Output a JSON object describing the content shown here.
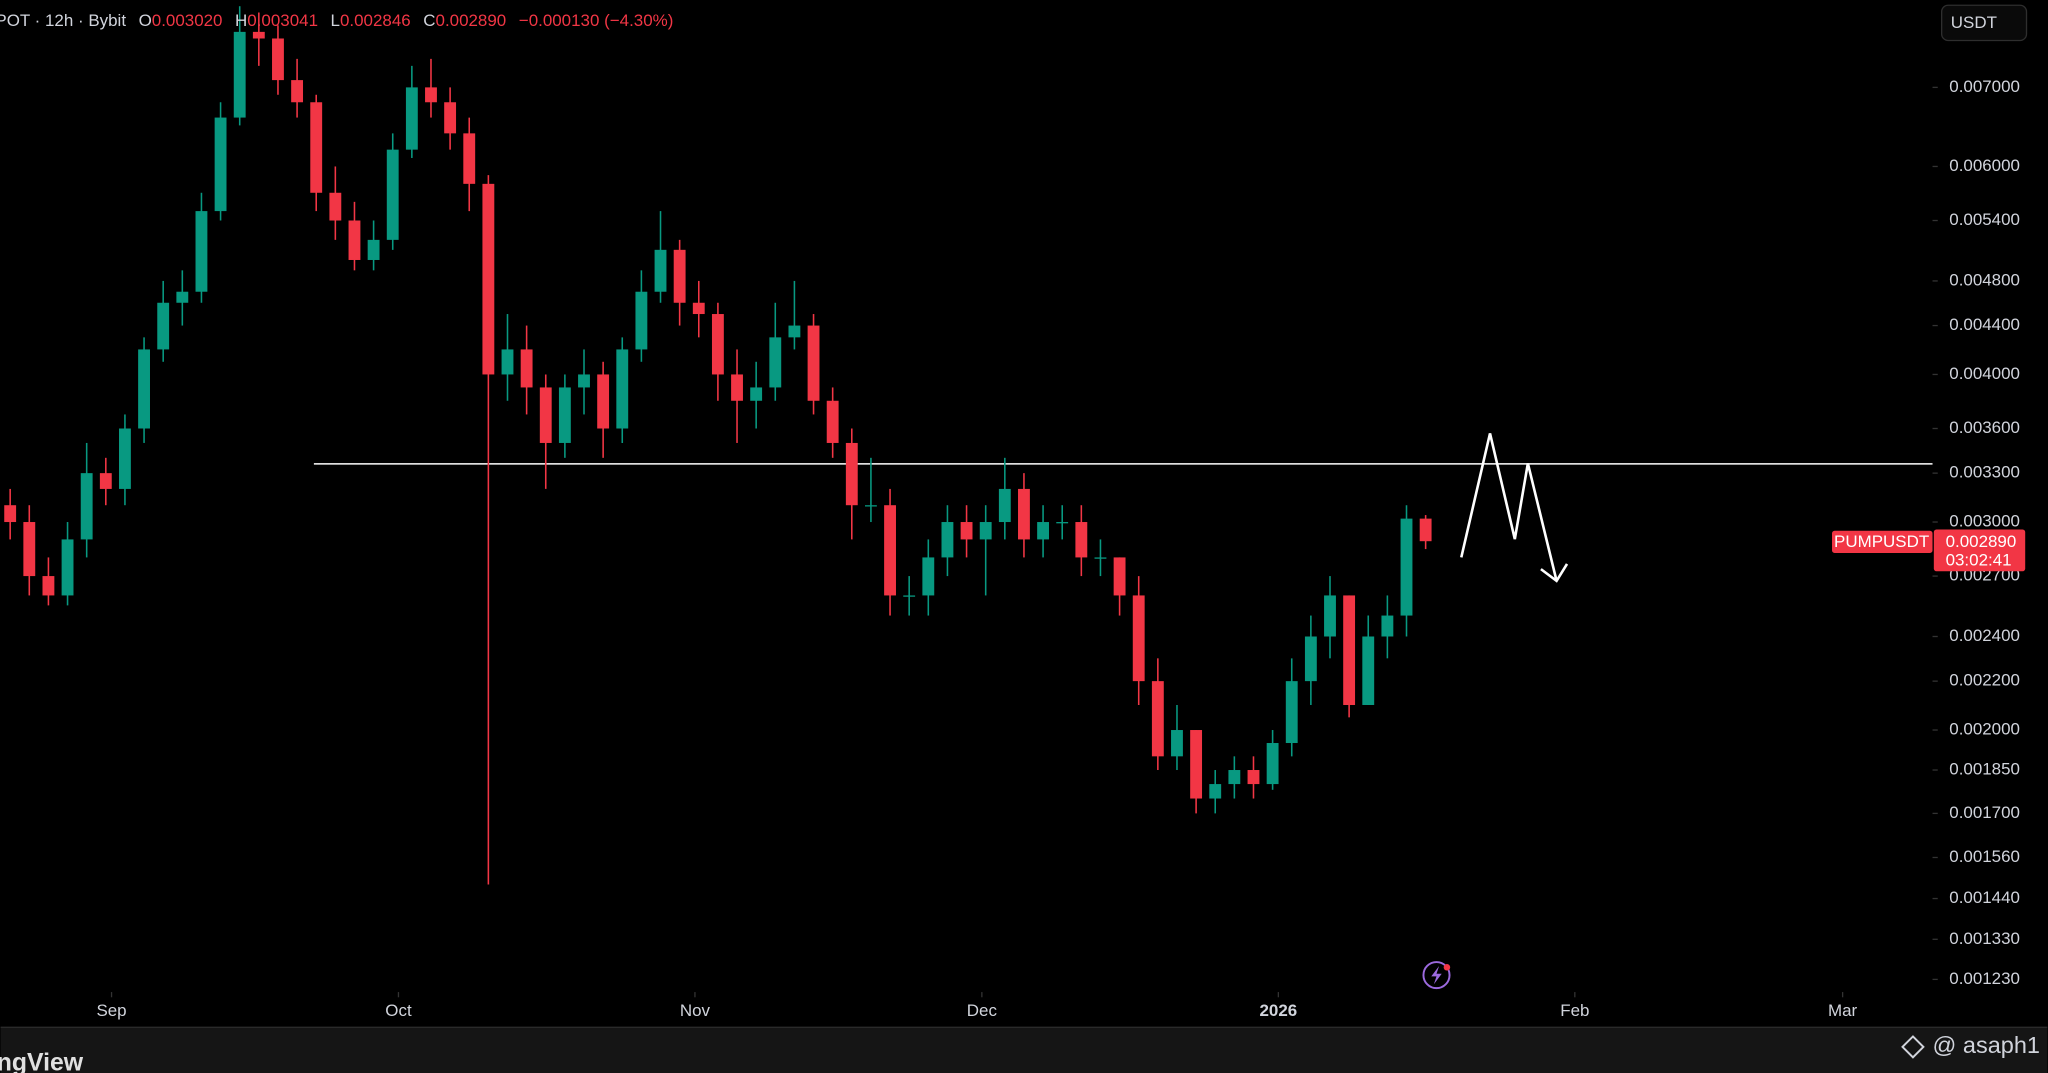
{
  "chart_data": {
    "type": "candlestick",
    "header": {
      "symbol": "POT · 12h · Bybit",
      "o_label": "O",
      "open": "0.003020",
      "h_label": "H",
      "high": "0.003041",
      "l_label": "L",
      "low": "0.002846",
      "c_label": "C",
      "close": "0.002890",
      "change": "−0.000130 (−4.30%)"
    },
    "currency_button": "USDT",
    "price_label": {
      "symbol": "PUMPUSDT",
      "price": "0.002890",
      "countdown": "03:02:41"
    },
    "watermark": "@ asaph1",
    "brand": "ngView",
    "log_scale": true,
    "up_color": "#089981",
    "down_color": "#f23645",
    "hline_color": "#ffffff",
    "hline": 0.00336,
    "xlim": [
      0,
      101
    ],
    "xticks": [
      {
        "value": 5.8,
        "label": "Sep"
      },
      {
        "value": 20.8,
        "label": "Oct"
      },
      {
        "value": 36.3,
        "label": "Nov"
      },
      {
        "value": 51.3,
        "label": "Dec"
      },
      {
        "value": 66.8,
        "label": "2026"
      },
      {
        "value": 82.3,
        "label": "Feb"
      },
      {
        "value": 96.3,
        "label": "Mar"
      }
    ],
    "ylim": [
      0.0012,
      0.0083
    ],
    "yticks": [
      {
        "value": 0.007,
        "label": "0.007000"
      },
      {
        "value": 0.006,
        "label": "0.006000"
      },
      {
        "value": 0.0054,
        "label": "0.005400"
      },
      {
        "value": 0.0048,
        "label": "0.004800"
      },
      {
        "value": 0.0044,
        "label": "0.004400"
      },
      {
        "value": 0.004,
        "label": "0.004000"
      },
      {
        "value": 0.0036,
        "label": "0.003600"
      },
      {
        "value": 0.0033,
        "label": "0.003300"
      },
      {
        "value": 0.003,
        "label": "0.003000"
      },
      {
        "value": 0.0027,
        "label": "0.002700"
      },
      {
        "value": 0.0024,
        "label": "0.002400"
      },
      {
        "value": 0.0022,
        "label": "0.002200"
      },
      {
        "value": 0.002,
        "label": "0.002000"
      },
      {
        "value": 0.00185,
        "label": "0.001850"
      },
      {
        "value": 0.0017,
        "label": "0.001700"
      },
      {
        "value": 0.00156,
        "label": "0.001560"
      },
      {
        "value": 0.00144,
        "label": "0.001440"
      },
      {
        "value": 0.00133,
        "label": "0.001330"
      },
      {
        "value": 0.00123,
        "label": "0.001230"
      }
    ],
    "ohlc": [
      [
        0.0031,
        0.0032,
        0.0029,
        0.003
      ],
      [
        0.003,
        0.0031,
        0.0026,
        0.0027
      ],
      [
        0.0027,
        0.0028,
        0.00255,
        0.0026
      ],
      [
        0.0026,
        0.003,
        0.00255,
        0.0029
      ],
      [
        0.0029,
        0.0035,
        0.0028,
        0.0033
      ],
      [
        0.0033,
        0.0034,
        0.0031,
        0.0032
      ],
      [
        0.0032,
        0.0037,
        0.0031,
        0.0036
      ],
      [
        0.0036,
        0.0043,
        0.0035,
        0.0042
      ],
      [
        0.0042,
        0.0048,
        0.0041,
        0.0046
      ],
      [
        0.0046,
        0.0049,
        0.0044,
        0.0047
      ],
      [
        0.0047,
        0.0057,
        0.0046,
        0.0055
      ],
      [
        0.0055,
        0.0068,
        0.0054,
        0.0066
      ],
      [
        0.0066,
        0.0082,
        0.0065,
        0.0078
      ],
      [
        0.0078,
        0.0081,
        0.0073,
        0.0077
      ],
      [
        0.0077,
        0.0079,
        0.0069,
        0.0071
      ],
      [
        0.0071,
        0.0074,
        0.0066,
        0.0068
      ],
      [
        0.0068,
        0.0069,
        0.0055,
        0.0057
      ],
      [
        0.0057,
        0.006,
        0.0052,
        0.0054
      ],
      [
        0.0054,
        0.0056,
        0.0049,
        0.005
      ],
      [
        0.005,
        0.0054,
        0.0049,
        0.0052
      ],
      [
        0.0052,
        0.0064,
        0.0051,
        0.0062
      ],
      [
        0.0062,
        0.0073,
        0.0061,
        0.007
      ],
      [
        0.007,
        0.0074,
        0.0066,
        0.0068
      ],
      [
        0.0068,
        0.007,
        0.0062,
        0.0064
      ],
      [
        0.0064,
        0.0066,
        0.0055,
        0.0058
      ],
      [
        0.0058,
        0.0059,
        0.00148,
        0.004
      ],
      [
        0.004,
        0.0045,
        0.0038,
        0.0042
      ],
      [
        0.0042,
        0.0044,
        0.0037,
        0.0039
      ],
      [
        0.0039,
        0.004,
        0.0032,
        0.0035
      ],
      [
        0.0035,
        0.004,
        0.0034,
        0.0039
      ],
      [
        0.0039,
        0.0042,
        0.0037,
        0.004
      ],
      [
        0.004,
        0.0041,
        0.0034,
        0.0036
      ],
      [
        0.0036,
        0.0043,
        0.0035,
        0.0042
      ],
      [
        0.0042,
        0.0049,
        0.0041,
        0.0047
      ],
      [
        0.0047,
        0.0055,
        0.0046,
        0.0051
      ],
      [
        0.0051,
        0.0052,
        0.0044,
        0.0046
      ],
      [
        0.0046,
        0.0048,
        0.0043,
        0.0045
      ],
      [
        0.0045,
        0.0046,
        0.0038,
        0.004
      ],
      [
        0.004,
        0.0042,
        0.0035,
        0.0038
      ],
      [
        0.0038,
        0.0041,
        0.0036,
        0.0039
      ],
      [
        0.0039,
        0.0046,
        0.0038,
        0.0043
      ],
      [
        0.0043,
        0.0048,
        0.0042,
        0.0044
      ],
      [
        0.0044,
        0.0045,
        0.0037,
        0.0038
      ],
      [
        0.0038,
        0.0039,
        0.0034,
        0.0035
      ],
      [
        0.0035,
        0.0036,
        0.0029,
        0.0031
      ],
      [
        0.0031,
        0.0034,
        0.003,
        0.0031
      ],
      [
        0.0031,
        0.0032,
        0.0025,
        0.0026
      ],
      [
        0.0026,
        0.0027,
        0.0025,
        0.0026
      ],
      [
        0.0026,
        0.0029,
        0.0025,
        0.0028
      ],
      [
        0.0028,
        0.0031,
        0.0027,
        0.003
      ],
      [
        0.003,
        0.0031,
        0.0028,
        0.0029
      ],
      [
        0.0029,
        0.0031,
        0.0026,
        0.003
      ],
      [
        0.003,
        0.0034,
        0.0029,
        0.0032
      ],
      [
        0.0032,
        0.0033,
        0.0028,
        0.0029
      ],
      [
        0.0029,
        0.0031,
        0.0028,
        0.003
      ],
      [
        0.003,
        0.0031,
        0.0029,
        0.003
      ],
      [
        0.003,
        0.0031,
        0.0027,
        0.0028
      ],
      [
        0.0028,
        0.0029,
        0.0027,
        0.0028
      ],
      [
        0.0028,
        0.0028,
        0.0025,
        0.0026
      ],
      [
        0.0026,
        0.0027,
        0.0021,
        0.0022
      ],
      [
        0.0022,
        0.0023,
        0.00185,
        0.0019
      ],
      [
        0.0019,
        0.0021,
        0.00185,
        0.002
      ],
      [
        0.002,
        0.002,
        0.0017,
        0.00175
      ],
      [
        0.00175,
        0.00185,
        0.0017,
        0.0018
      ],
      [
        0.0018,
        0.0019,
        0.00175,
        0.00185
      ],
      [
        0.00185,
        0.0019,
        0.00175,
        0.0018
      ],
      [
        0.0018,
        0.002,
        0.00178,
        0.00195
      ],
      [
        0.00195,
        0.0023,
        0.0019,
        0.0022
      ],
      [
        0.0022,
        0.0025,
        0.0021,
        0.0024
      ],
      [
        0.0024,
        0.0027,
        0.0023,
        0.0026
      ],
      [
        0.0026,
        0.0026,
        0.00205,
        0.0021
      ],
      [
        0.0021,
        0.0025,
        0.0021,
        0.0024
      ],
      [
        0.0024,
        0.0026,
        0.0023,
        0.0025
      ],
      [
        0.0025,
        0.0031,
        0.0024,
        0.00302
      ],
      [
        0.00302,
        0.003041,
        0.002846,
        0.00289
      ]
    ]
  }
}
